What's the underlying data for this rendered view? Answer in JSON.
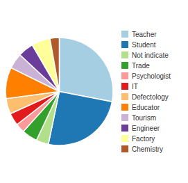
{
  "chart_data": {
    "type": "pie",
    "categories": [
      "Teacher",
      "Student",
      "Not indicate",
      "Trade",
      "Psychologist",
      "IT",
      "Defectology",
      "Educator",
      "Tourism",
      "Engineer",
      "Factory",
      "Chemistry"
    ],
    "values": [
      30,
      27,
      4,
      5,
      3,
      4,
      5,
      10,
      5,
      5,
      6,
      3
    ],
    "legend": "right"
  }
}
